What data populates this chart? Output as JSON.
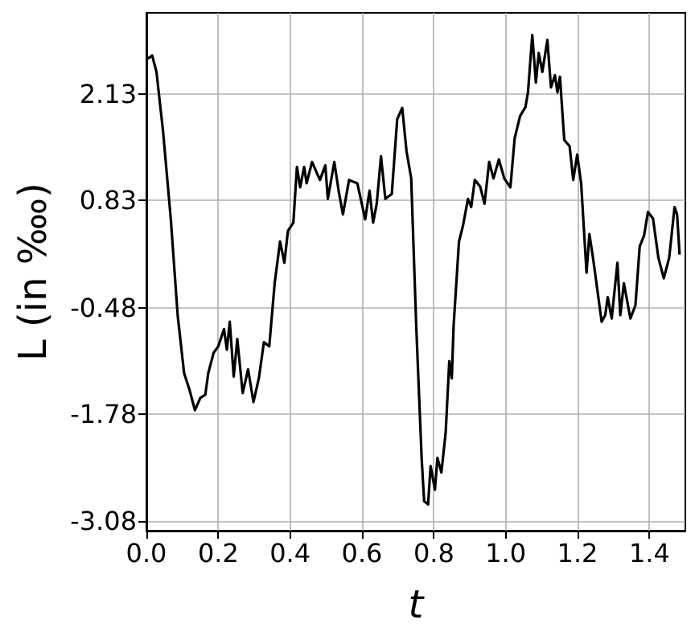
{
  "chart_data": {
    "type": "line",
    "xlabel": "t",
    "ylabel": "L (in ‱)",
    "xlim": [
      0,
      1.5
    ],
    "ylim": [
      -3.2,
      3.12
    ],
    "xticks": [
      {
        "value": 0,
        "label": "0.0"
      },
      0.2,
      0.4,
      0.6,
      0.8,
      {
        "value": 1,
        "label": "1.0"
      },
      1.2,
      1.4
    ],
    "yticks": [
      -3.08,
      -1.78,
      -0.48,
      0.83,
      2.13
    ],
    "grid": true,
    "marker": "none",
    "line_style": "solid",
    "series": [
      {
        "color": "#000000",
        "x": [
          0.004,
          0.016,
          0.028,
          0.046,
          0.068,
          0.087,
          0.105,
          0.12,
          0.135,
          0.15,
          0.164,
          0.172,
          0.187,
          0.2,
          0.216,
          0.224,
          0.232,
          0.243,
          0.253,
          0.268,
          0.283,
          0.298,
          0.313,
          0.327,
          0.342,
          0.357,
          0.372,
          0.384,
          0.394,
          0.409,
          0.419,
          0.428,
          0.439,
          0.446,
          0.461,
          0.483,
          0.498,
          0.505,
          0.523,
          0.535,
          0.547,
          0.564,
          0.587,
          0.609,
          0.621,
          0.631,
          0.641,
          0.653,
          0.665,
          0.683,
          0.698,
          0.712,
          0.724,
          0.737,
          0.751,
          0.766,
          0.773,
          0.784,
          0.791,
          0.803,
          0.81,
          0.821,
          0.833,
          0.843,
          0.85,
          0.855,
          0.87,
          0.881,
          0.895,
          0.904,
          0.914,
          0.929,
          0.941,
          0.954,
          0.966,
          0.981,
          0.996,
          1.013,
          1.025,
          1.04,
          1.055,
          1.062,
          1.074,
          1.084,
          1.092,
          1.102,
          1.116,
          1.126,
          1.137,
          1.144,
          1.151,
          1.163,
          1.178,
          1.188,
          1.199,
          1.21,
          1.225,
          1.233,
          1.243,
          1.252,
          1.267,
          1.277,
          1.284,
          1.295,
          1.311,
          1.319,
          1.329,
          1.347,
          1.361,
          1.373,
          1.385,
          1.396,
          1.41,
          1.425,
          1.44,
          1.455,
          1.47,
          1.477,
          1.484
        ],
        "values": [
          2.56,
          2.6,
          2.4,
          1.69,
          0.6,
          -0.57,
          -1.28,
          -1.48,
          -1.73,
          -1.58,
          -1.54,
          -1.28,
          -1.03,
          -0.95,
          -0.74,
          -0.99,
          -0.65,
          -1.32,
          -0.86,
          -1.52,
          -1.23,
          -1.63,
          -1.34,
          -0.9,
          -0.95,
          -0.18,
          0.33,
          0.07,
          0.46,
          0.56,
          1.24,
          0.99,
          1.24,
          1.04,
          1.3,
          1.08,
          1.26,
          0.85,
          1.3,
          0.95,
          0.66,
          1.08,
          1.04,
          0.6,
          0.95,
          0.56,
          0.79,
          1.37,
          0.85,
          0.91,
          1.82,
          1.96,
          1.43,
          1.1,
          -0.7,
          -2.31,
          -2.84,
          -2.88,
          -2.41,
          -2.7,
          -2.31,
          -2.49,
          -2.0,
          -1.13,
          -1.34,
          -0.7,
          0.33,
          0.52,
          0.85,
          0.75,
          1.08,
          1.0,
          0.79,
          1.3,
          1.1,
          1.33,
          1.1,
          0.99,
          1.59,
          1.86,
          1.97,
          2.15,
          2.85,
          2.27,
          2.63,
          2.4,
          2.79,
          2.21,
          2.36,
          2.15,
          2.34,
          1.57,
          1.49,
          1.08,
          1.39,
          1.04,
          -0.05,
          0.42,
          0.13,
          -0.16,
          -0.65,
          -0.57,
          -0.35,
          -0.61,
          0.07,
          -0.57,
          -0.18,
          -0.61,
          -0.45,
          0.27,
          0.4,
          0.69,
          0.61,
          0.13,
          -0.12,
          0.13,
          0.75,
          0.66,
          0.17
        ]
      }
    ]
  }
}
